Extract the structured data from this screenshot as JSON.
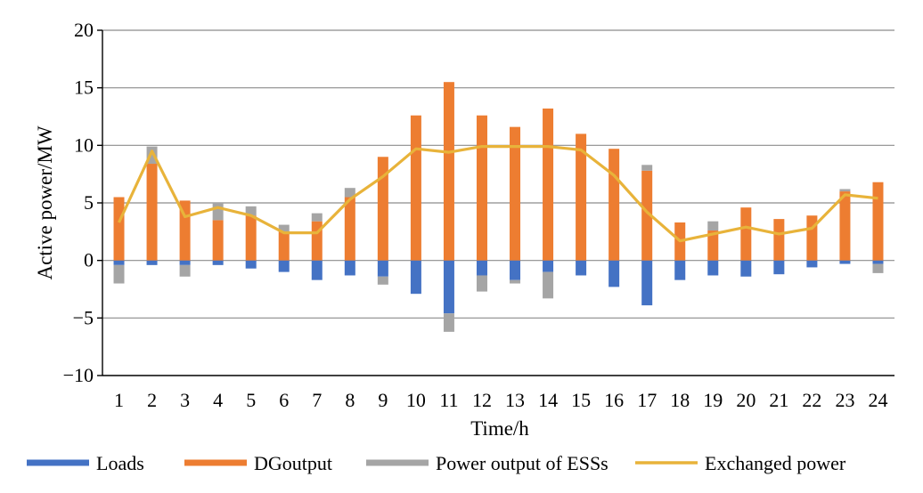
{
  "chart_data": {
    "type": "bar",
    "stacked": true,
    "title": "",
    "xlabel": "Time/h",
    "ylabel": "Active power/MW",
    "ylim": [
      -10,
      20
    ],
    "yticks": [
      -10,
      -5,
      0,
      5,
      10,
      15,
      20
    ],
    "ytick_labels": [
      "−10",
      "−5",
      "0",
      "5",
      "10",
      "15",
      "20"
    ],
    "grid": true,
    "legend_position": "bottom",
    "categories": [
      "1",
      "2",
      "3",
      "4",
      "5",
      "6",
      "7",
      "8",
      "9",
      "10",
      "11",
      "12",
      "13",
      "14",
      "15",
      "16",
      "17",
      "18",
      "19",
      "20",
      "21",
      "22",
      "23",
      "24"
    ],
    "series": [
      {
        "name": "Loads",
        "type": "bar",
        "color": "#4472c4",
        "values": [
          -0.4,
          -0.4,
          -0.4,
          -0.4,
          -0.7,
          -1.0,
          -1.7,
          -1.3,
          -1.4,
          -2.9,
          -4.6,
          -1.3,
          -1.7,
          -1.0,
          -1.3,
          -2.3,
          -3.9,
          -1.7,
          -1.3,
          -1.4,
          -1.2,
          -0.6,
          -0.3,
          -0.3
        ]
      },
      {
        "name": "DGoutput",
        "type": "bar",
        "color": "#ed7d31",
        "values": [
          5.5,
          8.4,
          5.2,
          3.5,
          3.9,
          2.5,
          3.4,
          5.5,
          9.0,
          12.6,
          15.5,
          12.6,
          11.6,
          13.2,
          11.0,
          9.7,
          7.8,
          3.3,
          2.6,
          4.6,
          3.6,
          3.9,
          6.0,
          6.8
        ]
      },
      {
        "name": "Power output of ESSs",
        "type": "bar",
        "color": "#a5a5a5",
        "values": [
          -1.6,
          1.5,
          -1.0,
          1.5,
          0.8,
          0.6,
          0.7,
          0.8,
          -0.7,
          0,
          -1.6,
          -1.4,
          -0.3,
          -2.3,
          0,
          0,
          0.5,
          0,
          0.8,
          0,
          0,
          0,
          0.2,
          -0.8
        ]
      },
      {
        "name": "Exchanged power",
        "type": "line",
        "color": "#e8b33a",
        "values": [
          3.3,
          9.5,
          3.8,
          4.6,
          3.9,
          2.4,
          2.4,
          5.3,
          7.3,
          9.7,
          9.4,
          9.9,
          9.9,
          9.9,
          9.6,
          7.4,
          4.2,
          1.7,
          2.3,
          2.9,
          2.3,
          2.8,
          5.7,
          5.4
        ]
      }
    ]
  }
}
